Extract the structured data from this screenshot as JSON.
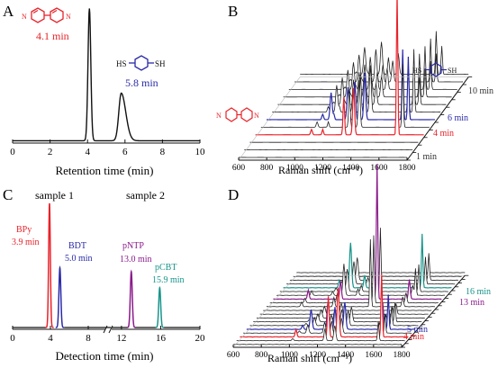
{
  "panels": {
    "A": {
      "letter": "A",
      "chart_data": {
        "type": "line",
        "xlabel": "Retention time (min)",
        "xlim": [
          0,
          10
        ],
        "xticks": [
          0,
          2,
          4,
          6,
          8,
          10
        ],
        "peaks": [
          {
            "label": "4.1 min",
            "x": 4.1,
            "height": 1.0,
            "color": "#e8232a"
          },
          {
            "label": "5.8 min",
            "x": 5.8,
            "height": 0.36,
            "color": "#2a2aa8"
          }
        ],
        "molecule_labels": {
          "bdt_left": "HS",
          "bdt_right": "SH"
        }
      }
    },
    "B": {
      "letter": "B",
      "chart_data": {
        "type": "line",
        "xlabel": "Raman shift (cm⁻¹)",
        "xticks": [
          600,
          800,
          1000,
          1200,
          1400,
          1600,
          1800
        ],
        "spectra_times": [
          "1 min",
          "4 min",
          "6 min",
          "10 min"
        ],
        "time_colors": {
          "1 min": "#333333",
          "4 min": "#e8232a",
          "6 min": "#2a2aa8",
          "10 min": "#333333"
        },
        "molecule_labels": {
          "bdt_left": "HS",
          "bdt_right": "SH"
        }
      }
    },
    "C": {
      "letter": "C",
      "chart_data": {
        "type": "line",
        "xlabel": "Detection time (min)",
        "xticks_left": [
          0,
          4,
          8
        ],
        "xticks_right": [
          12,
          16,
          20
        ],
        "groups": [
          "sample 1",
          "sample 2"
        ],
        "peaks": [
          {
            "name": "BPy",
            "time": "3.9 min",
            "x": 3.9,
            "height": 1.0,
            "color": "#e8232a"
          },
          {
            "name": "BDT",
            "time": "5.0 min",
            "x": 5.0,
            "height": 0.48,
            "color": "#2a2aa8"
          },
          {
            "name": "pNTP",
            "time": "13.0 min",
            "x": 13.0,
            "height": 0.45,
            "color": "#8a1a8a"
          },
          {
            "name": "pCBT",
            "time": "15.9 min",
            "x": 15.9,
            "height": 0.32,
            "color": "#17948a"
          }
        ]
      }
    },
    "D": {
      "letter": "D",
      "chart_data": {
        "type": "line",
        "xlabel": "Raman shift (cm⁻¹)",
        "xticks": [
          600,
          800,
          1000,
          1200,
          1400,
          1600,
          1800
        ],
        "spectra_times": [
          "4 min",
          "5 min",
          "13 min",
          "16 min"
        ],
        "time_colors": {
          "4 min": "#e8232a",
          "5 min": "#2a2aa8",
          "13 min": "#8a1a8a",
          "16 min": "#17948a"
        }
      }
    }
  }
}
